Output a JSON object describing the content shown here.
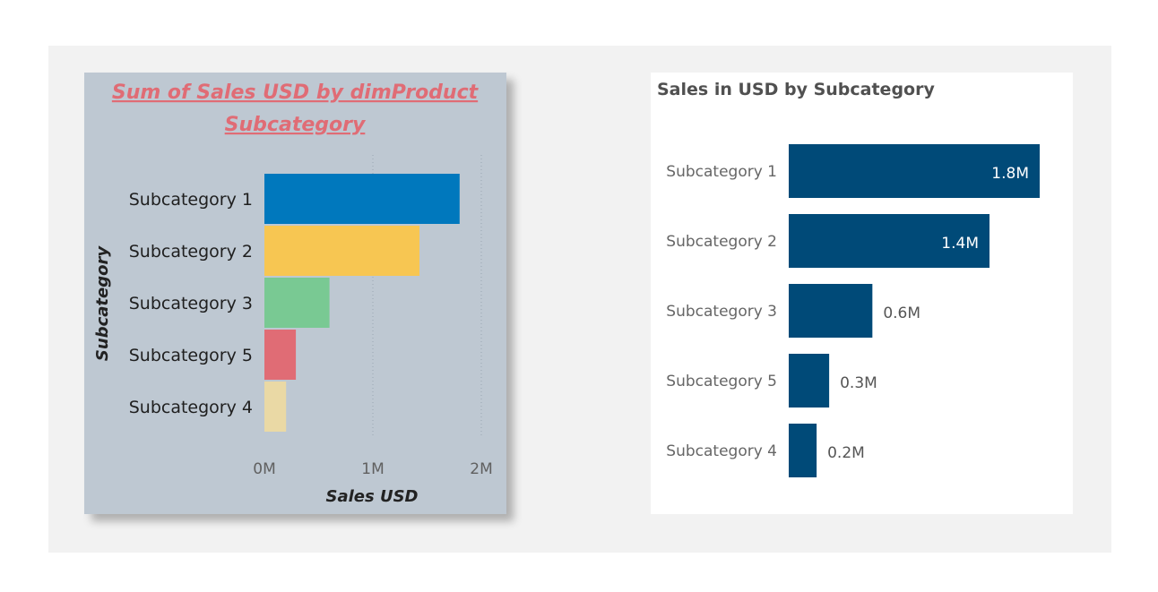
{
  "chart_data": [
    {
      "type": "bar",
      "orientation": "horizontal",
      "title": "Sum of Sales USD by dimProduct Subcategory",
      "title_lines": [
        "Sum of Sales USD by dimProduct",
        "Subcategory"
      ],
      "categories": [
        "Subcategory 1",
        "Subcategory 2",
        "Subcategory 3",
        "Subcategory 5",
        "Subcategory 4"
      ],
      "values": [
        1.8,
        1.43,
        0.6,
        0.29,
        0.2
      ],
      "value_unit": "M",
      "colors": [
        "#0078bd",
        "#f7c652",
        "#79c993",
        "#e06c75",
        "#ead9a5"
      ],
      "xlabel": "Sales USD",
      "ylabel": "Subcategory",
      "xlim": [
        0,
        2
      ],
      "xticks": [
        0,
        1,
        2
      ],
      "xtick_labels": [
        "0M",
        "1M",
        "2M"
      ],
      "grid": true,
      "background": "#bec8d2"
    },
    {
      "type": "bar",
      "orientation": "horizontal",
      "title": "Sales in USD by Subcategory",
      "categories": [
        "Subcategory 1",
        "Subcategory 2",
        "Subcategory 3",
        "Subcategory 5",
        "Subcategory 4"
      ],
      "values": [
        1.8,
        1.44,
        0.6,
        0.29,
        0.2
      ],
      "data_labels": [
        "1.8M",
        "1.4M",
        "0.6M",
        "0.3M",
        "0.2M"
      ],
      "value_unit": "M",
      "bar_color": "#004a78",
      "xlim": [
        0,
        1.8
      ],
      "grid": false,
      "background": "#ffffff"
    }
  ]
}
